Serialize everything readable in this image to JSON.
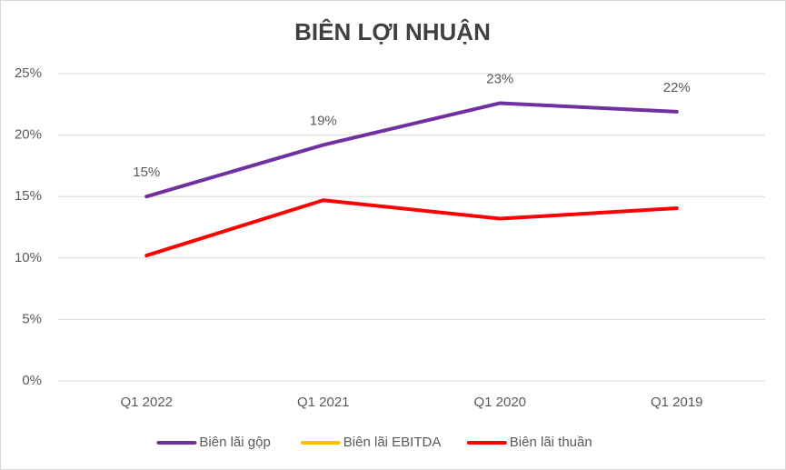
{
  "chart_data": {
    "type": "line",
    "title": "BIÊN LỢI NHUẬN",
    "categories": [
      "Q1 2022",
      "Q1 2021",
      "Q1 2020",
      "Q1 2019"
    ],
    "series": [
      {
        "name": "Biên lãi gộp",
        "color": "#7030a0",
        "values": [
          15.0,
          19.2,
          22.6,
          21.9
        ],
        "value_labels": [
          "15%",
          "19%",
          "23%",
          "22%"
        ]
      },
      {
        "name": "Biên lãi EBITDA",
        "color": "#ffc000",
        "values": [
          null,
          null,
          null,
          null
        ]
      },
      {
        "name": "Biên lãi thuần",
        "color": "#ff0000",
        "values": [
          10.2,
          14.7,
          13.2,
          14.05
        ]
      }
    ],
    "ylim": [
      0,
      25
    ],
    "yticks": [
      {
        "value": 0,
        "label": "0%"
      },
      {
        "value": 5,
        "label": "5%"
      },
      {
        "value": 10,
        "label": "10%"
      },
      {
        "value": 15,
        "label": "15%"
      },
      {
        "value": 20,
        "label": "20%"
      },
      {
        "value": 25,
        "label": "25%"
      }
    ],
    "grid": true,
    "legend": "bottom"
  }
}
